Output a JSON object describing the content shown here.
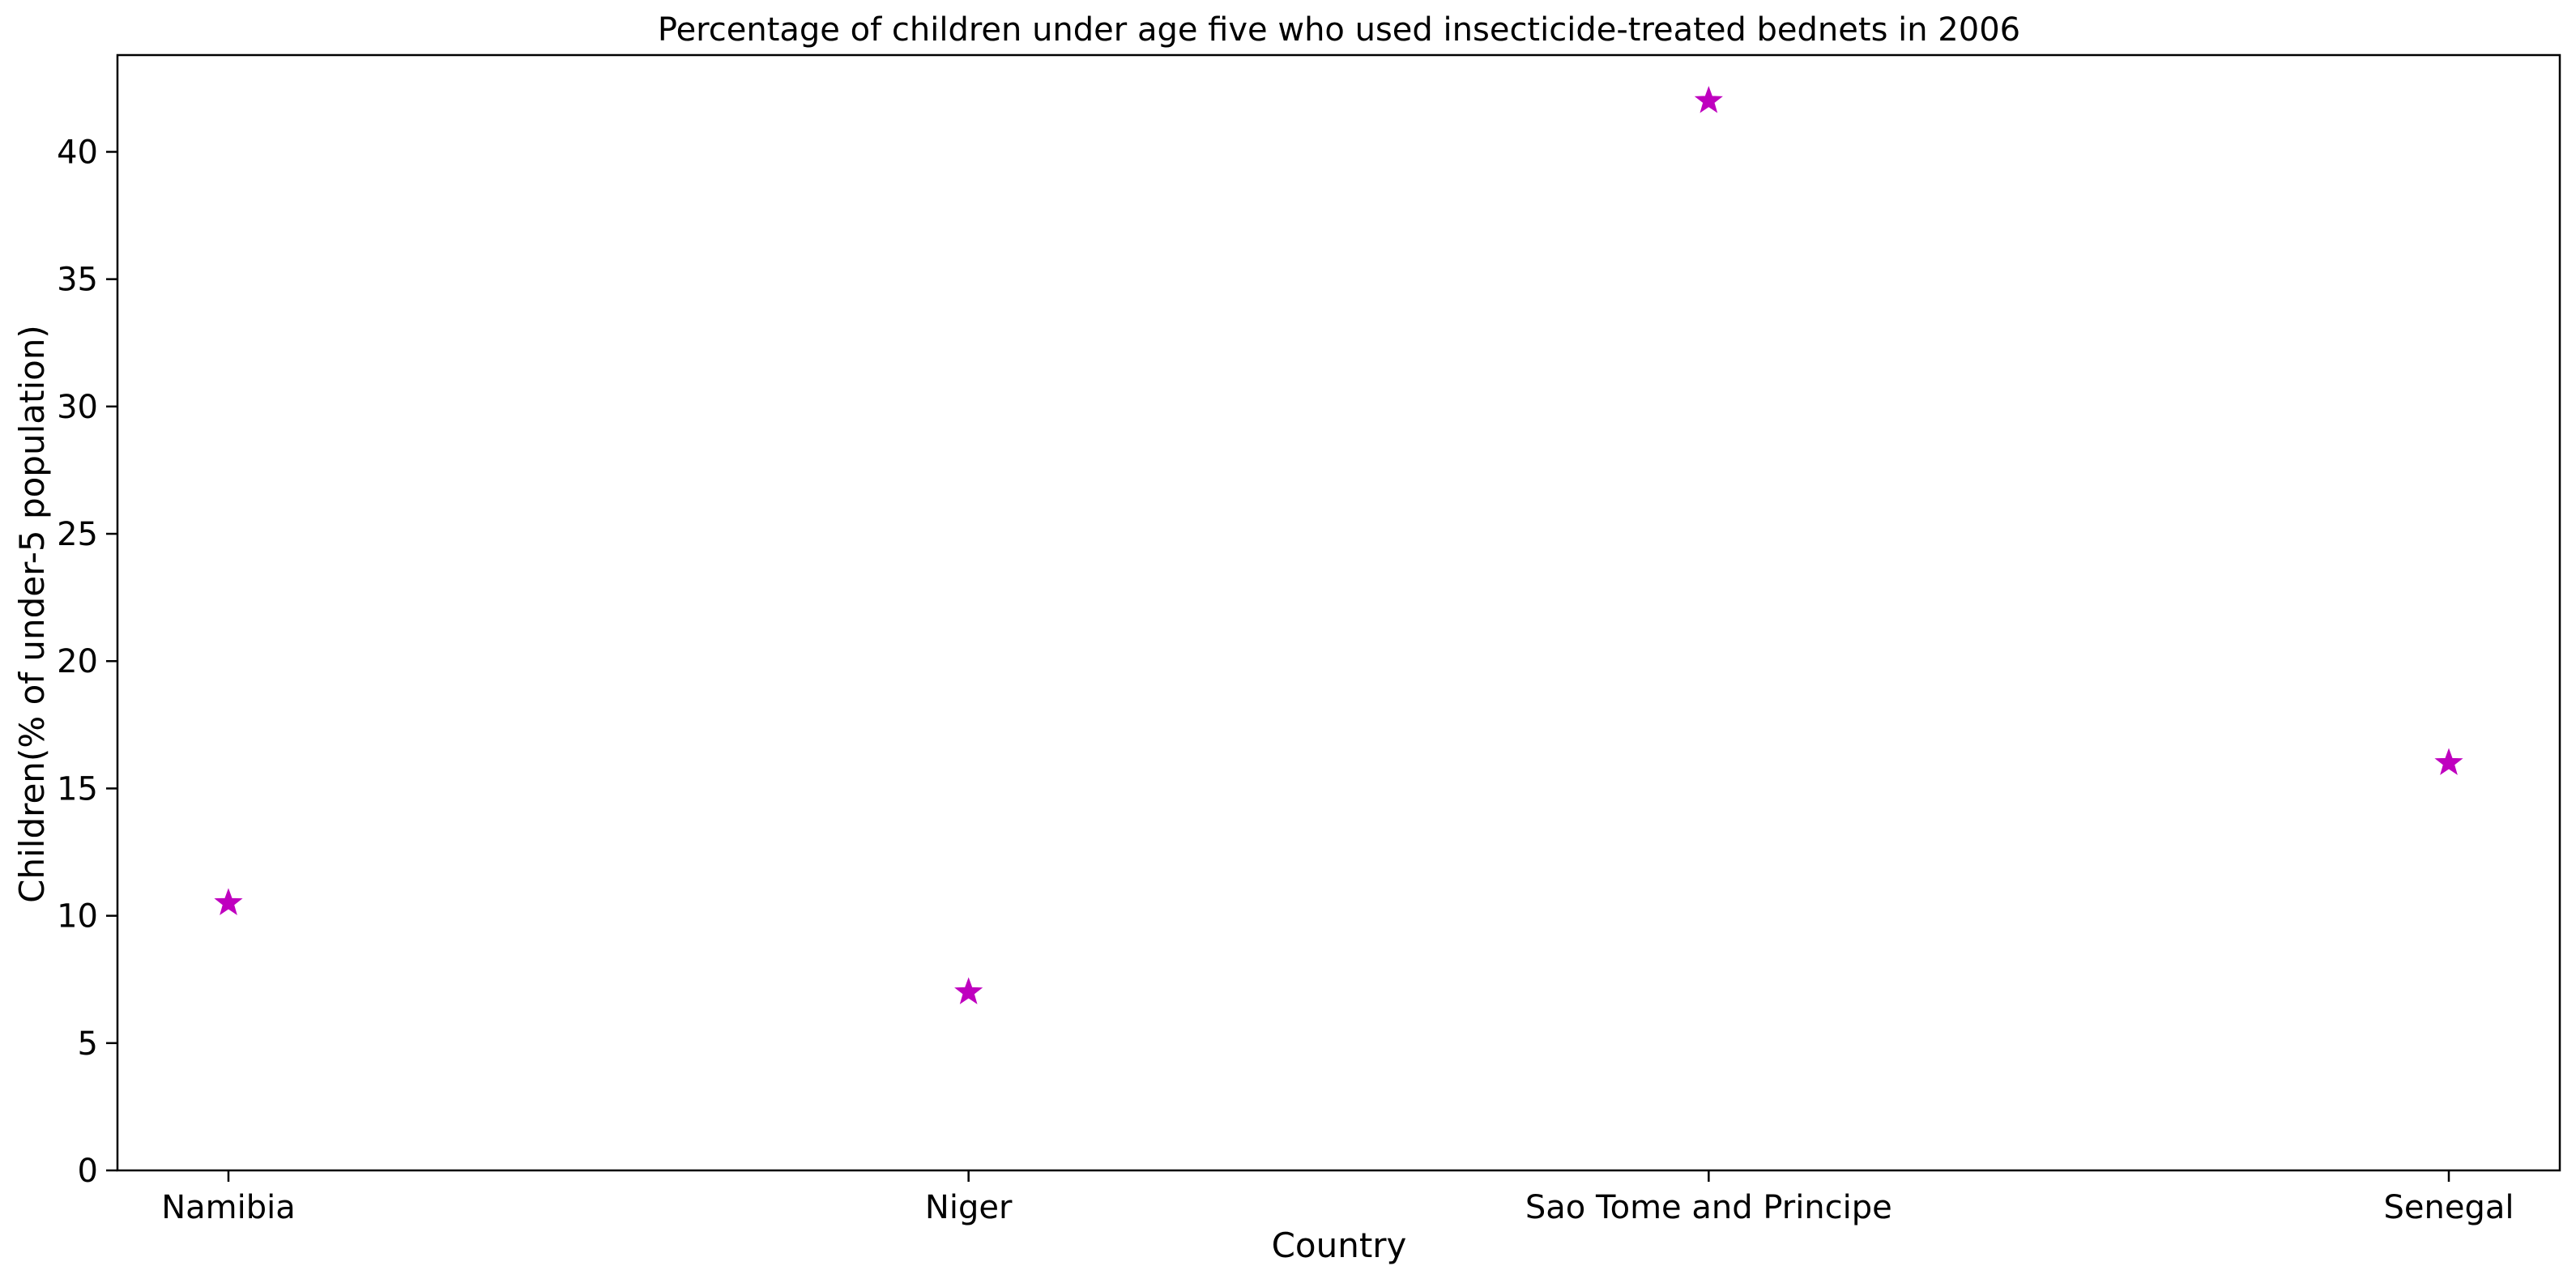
{
  "chart_data": {
    "type": "scatter",
    "title": "Percentage of children under age five who used insecticide-treated bednets in 2006",
    "xlabel": "Country",
    "ylabel": "Children(% of under-5 population)",
    "categories": [
      "Namibia",
      "Niger",
      "Sao Tome and Principe",
      "Senegal"
    ],
    "values": [
      10.5,
      7.0,
      42.0,
      16.0
    ],
    "ylim": [
      0,
      43.8
    ],
    "yticks": [
      0,
      5,
      10,
      15,
      20,
      25,
      30,
      35,
      40
    ],
    "ytick_labels": [
      "0",
      "5",
      "10",
      "15",
      "20",
      "25",
      "30",
      "35",
      "40"
    ],
    "marker": "star",
    "marker_color": "#bf00bf",
    "grid": false,
    "legend": "none"
  }
}
